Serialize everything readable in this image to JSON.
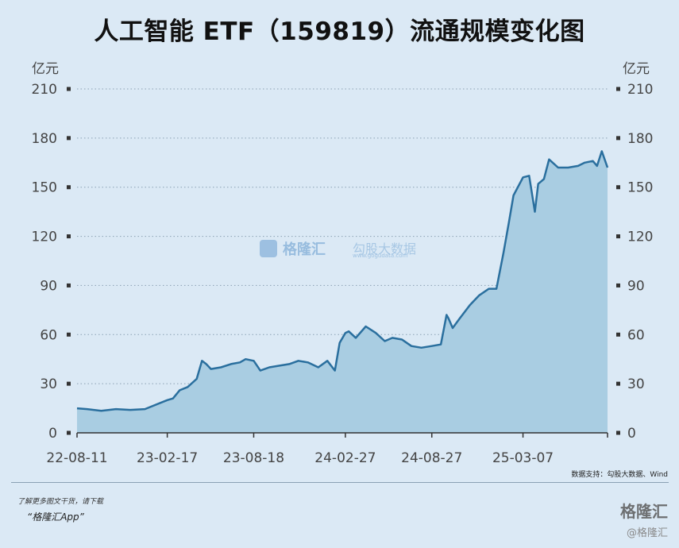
{
  "title": "人工智能 ETF（159819）流通规模变化图",
  "watermark": {
    "center_logo_text": "格隆汇",
    "center_secondary": "勾股大数据",
    "center_url": "www.gogudata.com",
    "corner_logo": "格隆汇",
    "corner_handle": "@格隆汇"
  },
  "source_note": "数据支持：勾股大数据、Wind",
  "promo_line1": "了解更多图文干货，请下载",
  "promo_line2": "“格隆汇App”",
  "colors": {
    "line": "#2a6f9e",
    "area": "#a9cde2",
    "background": "#dbe9f5",
    "grid": "#8aa0b3"
  },
  "chart_data": {
    "type": "area",
    "unit_left": "亿元",
    "unit_right": "亿元",
    "ylim": [
      0,
      210
    ],
    "yticks": [
      0,
      30,
      60,
      90,
      120,
      150,
      180,
      210
    ],
    "grid": true,
    "x_tick_labels": [
      "22-08-11",
      "23-02-17",
      "23-08-18",
      "24-02-27",
      "24-08-27",
      "25-03-07"
    ],
    "x_tick_dates": [
      "2022-08-11",
      "2023-02-17",
      "2023-08-18",
      "2024-02-27",
      "2024-08-27",
      "2025-03-07"
    ],
    "x_range": [
      "2022-08-11",
      "2025-09-01"
    ],
    "series": [
      {
        "name": "",
        "x": [
          "2022-08-11",
          "2022-09-01",
          "2022-10-01",
          "2022-11-01",
          "2022-12-01",
          "2023-01-01",
          "2023-02-17",
          "2023-03-01",
          "2023-03-15",
          "2023-04-01",
          "2023-04-20",
          "2023-05-01",
          "2023-05-10",
          "2023-05-20",
          "2023-06-10",
          "2023-07-01",
          "2023-07-20",
          "2023-08-01",
          "2023-08-18",
          "2023-09-01",
          "2023-09-20",
          "2023-10-10",
          "2023-11-01",
          "2023-11-20",
          "2023-12-10",
          "2024-01-01",
          "2024-01-20",
          "2024-02-05",
          "2024-02-15",
          "2024-02-27",
          "2024-03-05",
          "2024-03-20",
          "2024-04-10",
          "2024-05-01",
          "2024-05-20",
          "2024-06-05",
          "2024-06-25",
          "2024-07-15",
          "2024-08-05",
          "2024-08-27",
          "2024-09-15",
          "2024-09-27",
          "2024-10-01",
          "2024-10-10",
          "2024-10-25",
          "2024-11-15",
          "2024-12-05",
          "2024-12-25",
          "2025-01-10",
          "2025-01-25",
          "2025-02-05",
          "2025-02-15",
          "2025-03-07",
          "2025-03-20",
          "2025-04-01",
          "2025-04-08",
          "2025-04-20",
          "2025-05-01",
          "2025-05-20",
          "2025-06-10",
          "2025-07-01",
          "2025-07-15",
          "2025-08-01",
          "2025-08-10",
          "2025-08-20",
          "2025-09-01"
        ],
        "values": [
          15,
          14.5,
          13.5,
          14.5,
          14,
          14.5,
          20,
          21,
          26,
          28,
          33,
          44,
          42,
          39,
          40,
          42,
          43,
          45,
          44,
          38,
          40,
          41,
          42,
          44,
          43,
          40,
          44,
          38,
          55,
          61,
          62,
          58,
          65,
          61,
          56,
          58,
          57,
          53,
          52,
          53,
          54,
          72,
          70,
          64,
          70,
          78,
          84,
          88,
          88,
          110,
          128,
          145,
          156,
          157,
          135,
          152,
          155,
          167,
          162,
          162,
          163,
          165,
          166,
          163,
          172,
          162
        ]
      }
    ]
  }
}
